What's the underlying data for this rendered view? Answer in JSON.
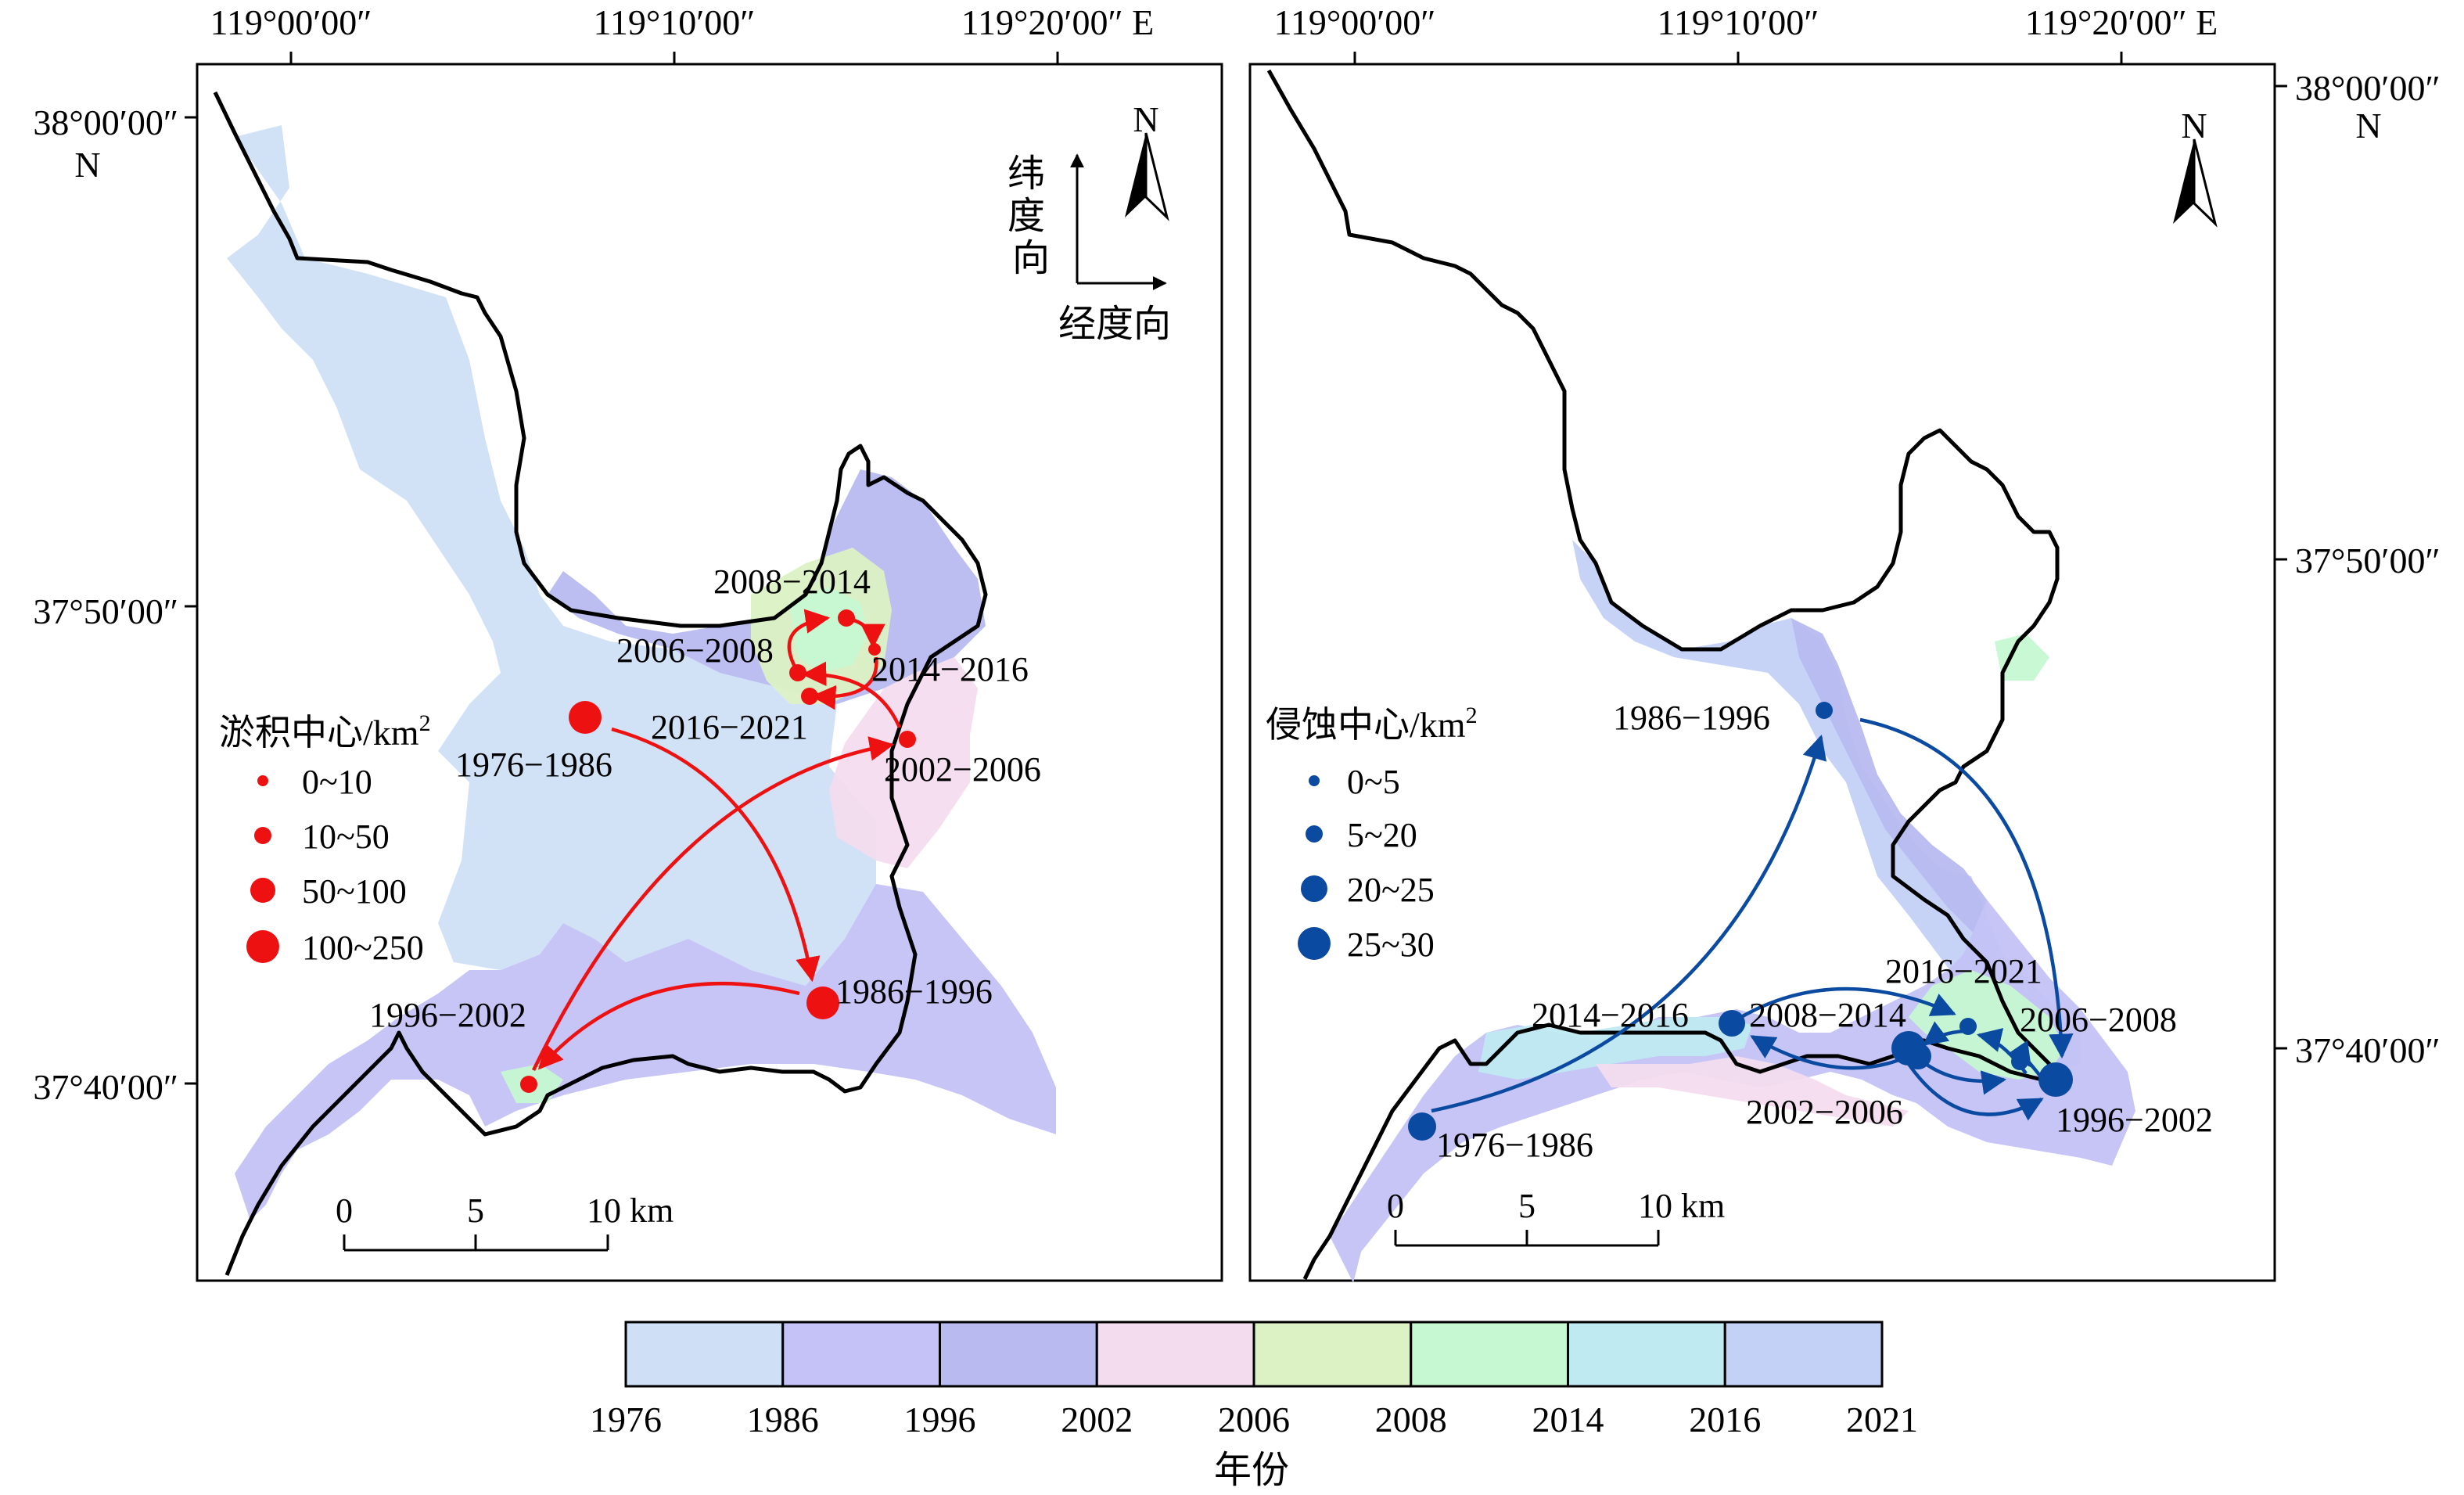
{
  "colors": {
    "1976": "#cfe0f6",
    "1986": "#c4c2f6",
    "1996": "#b8baf0",
    "2002": "#f3dcee",
    "2006": "#dcf1c4",
    "2008": "#c6f8d2",
    "2014": "#bfeaf2",
    "2016": "#c3d1f6",
    "deposit": "#ee1111",
    "erosion": "#0a4aa0",
    "coast": "#000000"
  },
  "left_map": {
    "top_ticks": [
      "119°00′00″",
      "119°10′00″",
      "119°20′00″ E"
    ],
    "lat_ticks": [
      {
        "deg": "38°00′00″",
        "hemi": "N"
      },
      {
        "deg": "37°50′00″",
        "hemi": ""
      },
      {
        "deg": "37°40′00″",
        "hemi": ""
      }
    ],
    "direction": {
      "north": "N",
      "lat_dir": "纬度向",
      "lon_dir": "经度向"
    },
    "legend": {
      "title": "淤积中心/km",
      "sup": "2",
      "classes": [
        "0~10",
        "10~50",
        "50~100",
        "100~250"
      ]
    },
    "centers": [
      "1976−1986",
      "1986−1996",
      "1996−2002",
      "2002−2006",
      "2006−2008",
      "2008−2014",
      "2014−2016",
      "2016−2021"
    ],
    "scale": {
      "labels": [
        "0",
        "5",
        "10 km"
      ]
    }
  },
  "right_map": {
    "top_ticks": [
      "119°00′00″",
      "119°10′00″",
      "119°20′00″ E"
    ],
    "lat_ticks": [
      {
        "deg": "38°00′00″",
        "hemi": "N"
      },
      {
        "deg": "37°50′00″",
        "hemi": ""
      },
      {
        "deg": "37°40′00″",
        "hemi": ""
      }
    ],
    "direction": {
      "north": "N"
    },
    "legend": {
      "title": "侵蚀中心/km",
      "sup": "2",
      "classes": [
        "0~5",
        "5~20",
        "20~25",
        "25~30"
      ]
    },
    "centers": [
      "1976−1986",
      "1986−1996",
      "1996−2002",
      "2006−2008",
      "2016−2021",
      "2014−2016",
      "2008−2014",
      "2002−2006"
    ],
    "scale": {
      "labels": [
        "0",
        "5",
        "10 km"
      ]
    }
  },
  "colorbar": {
    "ticks": [
      "1976",
      "1986",
      "1996",
      "2002",
      "2006",
      "2008",
      "2014",
      "2016",
      "2021"
    ],
    "title": "年份"
  }
}
